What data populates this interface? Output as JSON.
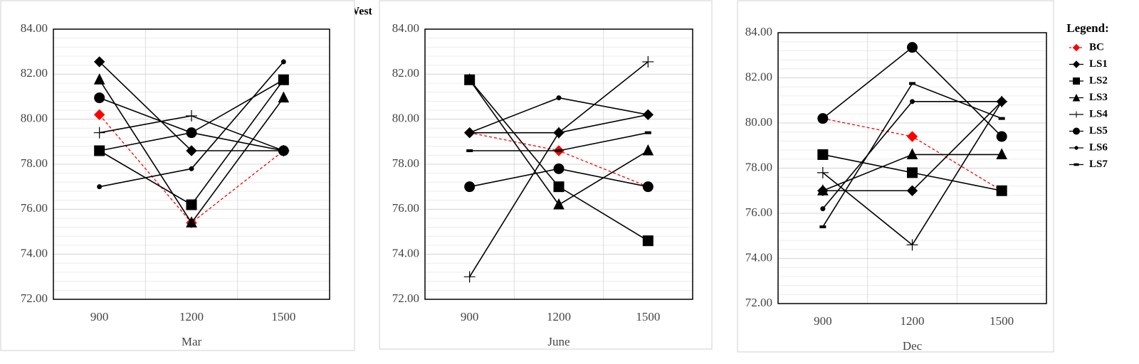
{
  "title": "West",
  "legend_title": "Legend:",
  "chart_data": [
    {
      "type": "line",
      "xlabel": "Mar",
      "categories": [
        "900",
        "1200",
        "1500"
      ],
      "ylim": [
        72,
        84
      ],
      "yticks": [
        {
          "value": 72,
          "label": "72.00"
        },
        {
          "value": 74,
          "label": "74.00"
        },
        {
          "value": 76,
          "label": "76.00"
        },
        {
          "value": 78,
          "label": "78.00"
        },
        {
          "value": 80,
          "label": "80.00"
        },
        {
          "value": 82,
          "label": "82.00"
        },
        {
          "value": 84,
          "label": "84.00"
        }
      ],
      "grid": true,
      "series": [
        {
          "name": "BC",
          "color": "#ff0000",
          "marker": "diamond",
          "dashed": true,
          "values": [
            80.2,
            75.4,
            78.6
          ]
        },
        {
          "name": "LS1",
          "color": "#000000",
          "marker": "diamond",
          "values": [
            82.55,
            78.6,
            78.6
          ]
        },
        {
          "name": "LS2",
          "color": "#000000",
          "marker": "square",
          "values": [
            78.6,
            76.2,
            81.75
          ]
        },
        {
          "name": "LS3",
          "color": "#000000",
          "marker": "triangle",
          "values": [
            81.75,
            75.4,
            80.95
          ]
        },
        {
          "name": "LS4",
          "color": "#000000",
          "marker": "plus",
          "values": [
            79.4,
            80.15,
            78.6
          ]
        },
        {
          "name": "LS5",
          "color": "#000000",
          "marker": "circle",
          "values": [
            80.95,
            79.4,
            78.6
          ]
        },
        {
          "name": "LS6",
          "color": "#000000",
          "marker": "dot",
          "values": [
            77.0,
            77.8,
            82.55
          ]
        },
        {
          "name": "LS7",
          "color": "#000000",
          "marker": "dash",
          "values": [
            78.6,
            79.4,
            81.75
          ]
        }
      ]
    },
    {
      "type": "line",
      "xlabel": "June",
      "categories": [
        "900",
        "1200",
        "1500"
      ],
      "ylim": [
        72,
        84
      ],
      "yticks": [
        {
          "value": 72,
          "label": "72.00"
        },
        {
          "value": 74,
          "label": "74.00"
        },
        {
          "value": 76,
          "label": "76.00"
        },
        {
          "value": 78,
          "label": "78.00"
        },
        {
          "value": 80,
          "label": "80.00"
        },
        {
          "value": 82,
          "label": "82.00"
        },
        {
          "value": 84,
          "label": "84.00"
        }
      ],
      "grid": true,
      "series": [
        {
          "name": "BC",
          "color": "#ff0000",
          "marker": "diamond",
          "dashed": true,
          "values": [
            79.4,
            78.6,
            77.0
          ]
        },
        {
          "name": "LS1",
          "color": "#000000",
          "marker": "diamond",
          "values": [
            79.4,
            79.4,
            80.2
          ]
        },
        {
          "name": "LS2",
          "color": "#000000",
          "marker": "square",
          "values": [
            81.75,
            77.0,
            74.6
          ]
        },
        {
          "name": "LS3",
          "color": "#000000",
          "marker": "triangle",
          "values": [
            81.75,
            76.2,
            78.6
          ]
        },
        {
          "name": "LS4",
          "color": "#000000",
          "marker": "plus",
          "values": [
            73.0,
            79.4,
            82.55
          ]
        },
        {
          "name": "LS5",
          "color": "#000000",
          "marker": "circle",
          "values": [
            77.0,
            77.8,
            77.0
          ]
        },
        {
          "name": "LS6",
          "color": "#000000",
          "marker": "dot",
          "values": [
            79.4,
            80.95,
            80.2
          ]
        },
        {
          "name": "LS7",
          "color": "#000000",
          "marker": "dash",
          "values": [
            78.6,
            78.6,
            79.4
          ]
        }
      ]
    },
    {
      "type": "line",
      "xlabel": "Dec",
      "categories": [
        "900",
        "1200",
        "1500"
      ],
      "ylim": [
        72,
        84
      ],
      "yticks": [
        {
          "value": 72,
          "label": "72.00"
        },
        {
          "value": 74,
          "label": "74.00"
        },
        {
          "value": 76,
          "label": "76.00"
        },
        {
          "value": 78,
          "label": "78.00"
        },
        {
          "value": 80,
          "label": "80.00"
        },
        {
          "value": 82,
          "label": "82.00"
        },
        {
          "value": 84,
          "label": "84.00"
        }
      ],
      "grid": true,
      "series": [
        {
          "name": "BC",
          "color": "#ff0000",
          "marker": "diamond",
          "dashed": true,
          "values": [
            80.2,
            79.4,
            77.0
          ]
        },
        {
          "name": "LS1",
          "color": "#000000",
          "marker": "diamond",
          "values": [
            77.0,
            77.0,
            80.95
          ]
        },
        {
          "name": "LS2",
          "color": "#000000",
          "marker": "square",
          "values": [
            78.6,
            77.8,
            77.0
          ]
        },
        {
          "name": "LS3",
          "color": "#000000",
          "marker": "triangle",
          "values": [
            77.0,
            78.6,
            78.6
          ]
        },
        {
          "name": "LS4",
          "color": "#000000",
          "marker": "plus",
          "values": [
            77.8,
            74.6,
            80.95
          ]
        },
        {
          "name": "LS5",
          "color": "#000000",
          "marker": "circle",
          "values": [
            80.2,
            83.35,
            79.4
          ]
        },
        {
          "name": "LS6",
          "color": "#000000",
          "marker": "dot",
          "values": [
            76.2,
            80.95,
            80.95
          ]
        },
        {
          "name": "LS7",
          "color": "#000000",
          "marker": "dash",
          "values": [
            75.4,
            81.75,
            80.2
          ]
        }
      ]
    }
  ]
}
